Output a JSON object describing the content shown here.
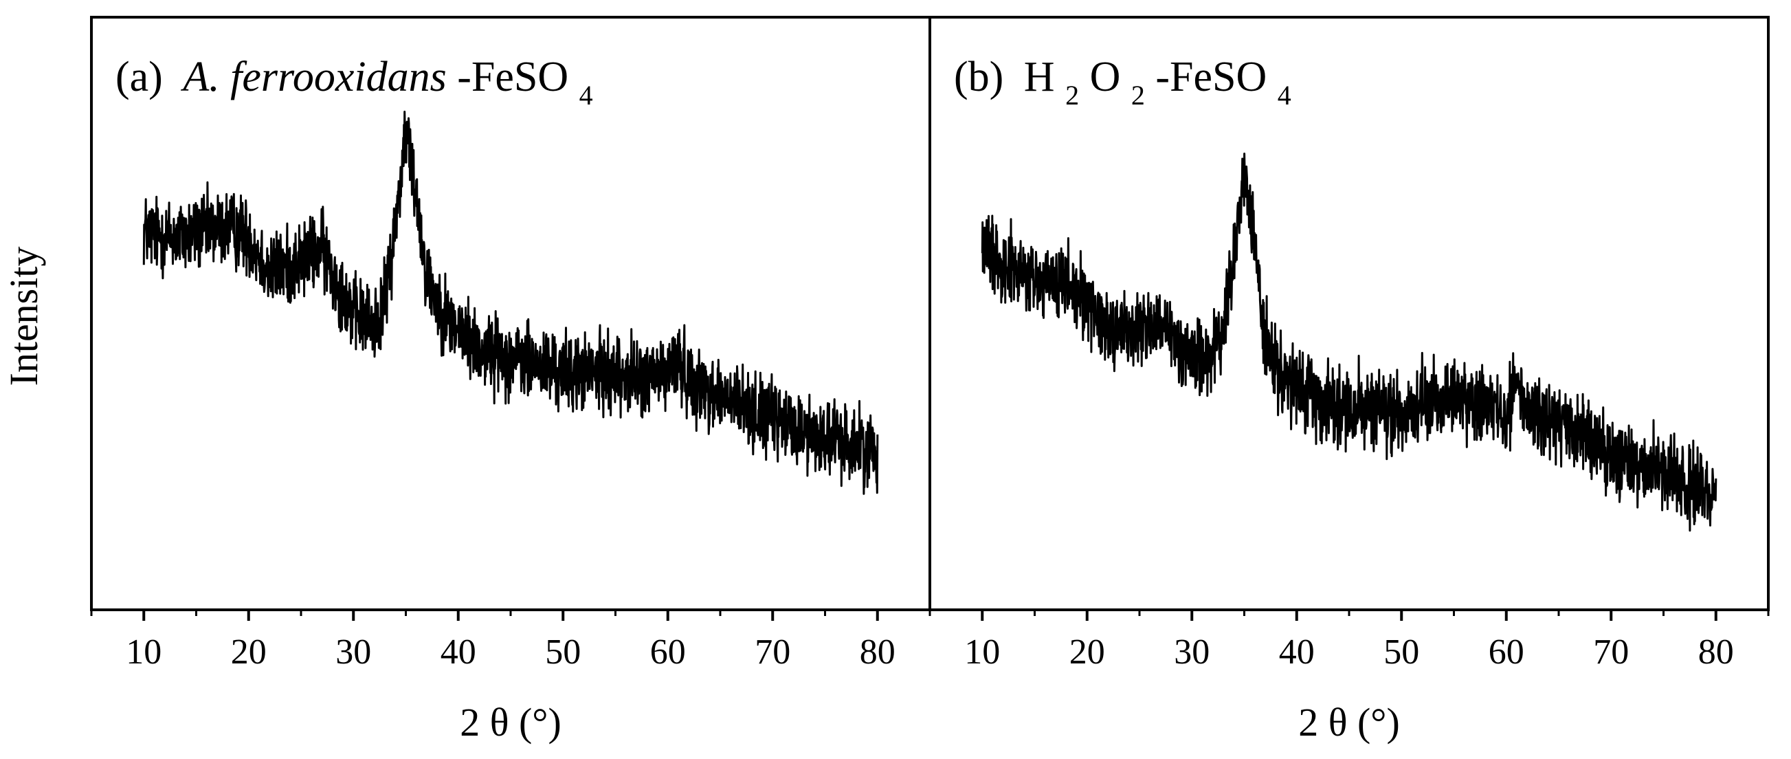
{
  "figure": {
    "ylabel": "Intensity",
    "colors": {
      "line": "#000000",
      "frame": "#000000",
      "background": "#ffffff"
    }
  },
  "chart_data": [
    {
      "type": "line",
      "panel_label": "(a)",
      "title_parts": {
        "italic": "A. ferrooxidans",
        "rest": "-FeSO",
        "sub": "4"
      },
      "xlabel": "2 θ (°)",
      "ylabel": "Intensity",
      "xlim": [
        5,
        85
      ],
      "xticks": [
        10,
        20,
        30,
        40,
        50,
        60,
        70,
        80
      ],
      "ylim": [
        0,
        1
      ],
      "y_ticks_shown": false,
      "grid": false,
      "noise": 0.045,
      "series": [
        {
          "points": [
            [
              10,
              0.64
            ],
            [
              12,
              0.63
            ],
            [
              14,
              0.63
            ],
            [
              16,
              0.64
            ],
            [
              18,
              0.645
            ],
            [
              20,
              0.63
            ],
            [
              22,
              0.57
            ],
            [
              24,
              0.58
            ],
            [
              26,
              0.6
            ],
            [
              27,
              0.61
            ],
            [
              28,
              0.57
            ],
            [
              30,
              0.5
            ],
            [
              32,
              0.48
            ],
            [
              33,
              0.52
            ],
            [
              34,
              0.65
            ],
            [
              35,
              0.81
            ],
            [
              36,
              0.7
            ],
            [
              37,
              0.56
            ],
            [
              39,
              0.49
            ],
            [
              42,
              0.44
            ],
            [
              46,
              0.42
            ],
            [
              50,
              0.4
            ],
            [
              55,
              0.4
            ],
            [
              58,
              0.39
            ],
            [
              60,
              0.4
            ],
            [
              61,
              0.42
            ],
            [
              62,
              0.39
            ],
            [
              65,
              0.36
            ],
            [
              70,
              0.32
            ],
            [
              75,
              0.29
            ],
            [
              80,
              0.27
            ]
          ]
        }
      ]
    },
    {
      "type": "line",
      "panel_label": "(b)",
      "title_parts": {
        "italic": "",
        "h": "H",
        "s1": "2",
        "o": "O",
        "s2": "2",
        "rest": "-FeSO",
        "sub": "4"
      },
      "xlabel": "2 θ (°)",
      "ylabel": "",
      "xlim": [
        5,
        85
      ],
      "xticks": [
        10,
        20,
        30,
        40,
        50,
        60,
        70,
        80
      ],
      "ylim": [
        0,
        1
      ],
      "y_ticks_shown": false,
      "grid": false,
      "noise": 0.045,
      "series": [
        {
          "points": [
            [
              10,
              0.61
            ],
            [
              12,
              0.59
            ],
            [
              14,
              0.56
            ],
            [
              16,
              0.55
            ],
            [
              18,
              0.55
            ],
            [
              20,
              0.52
            ],
            [
              22,
              0.48
            ],
            [
              24,
              0.47
            ],
            [
              26,
              0.48
            ],
            [
              28,
              0.46
            ],
            [
              30,
              0.43
            ],
            [
              32,
              0.43
            ],
            [
              33,
              0.47
            ],
            [
              34,
              0.6
            ],
            [
              35,
              0.73
            ],
            [
              36,
              0.62
            ],
            [
              37,
              0.45
            ],
            [
              38,
              0.4
            ],
            [
              40,
              0.37
            ],
            [
              45,
              0.34
            ],
            [
              50,
              0.33
            ],
            [
              53,
              0.35
            ],
            [
              55,
              0.36
            ],
            [
              58,
              0.34
            ],
            [
              60,
              0.34
            ],
            [
              61,
              0.38
            ],
            [
              62,
              0.34
            ],
            [
              65,
              0.31
            ],
            [
              70,
              0.26
            ],
            [
              75,
              0.23
            ],
            [
              80,
              0.2
            ]
          ]
        }
      ]
    }
  ]
}
